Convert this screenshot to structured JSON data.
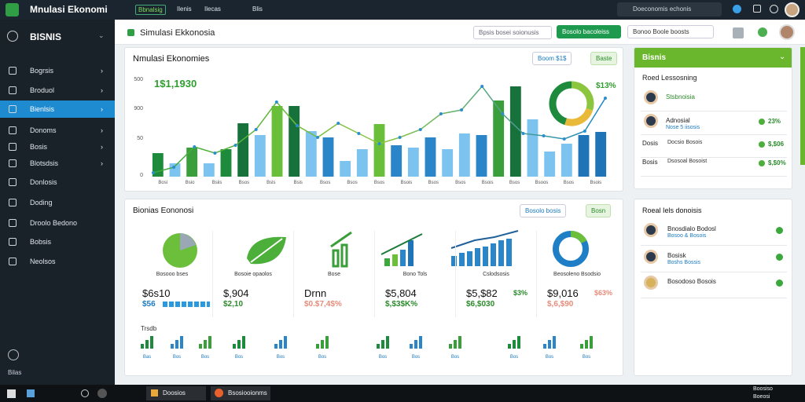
{
  "topbar": {
    "app": "Mnulasi Ekonomi",
    "menu": [
      "Bbnalsig",
      "Ilenis",
      "Ilecas",
      "Blis"
    ],
    "search": "Doeconomis echonis"
  },
  "sidebar": {
    "brand": "BISNIS",
    "items": [
      "Bogrsis",
      "Broduol",
      "Bienlsis",
      "Donoms",
      "Bosis",
      "Blotsdsis",
      "Donlosis",
      "Doding",
      "Droolo Bedono",
      "Bobsis",
      "Neolsos"
    ],
    "active": 2,
    "footer": "Bilas"
  },
  "header": {
    "title": "Simulasi Ekkonosia",
    "search": "Bpsis bosei soionusis",
    "button": "Bosolo bacoleiss",
    "filter": "Bonoo Boole boosts"
  },
  "chart_data": {
    "type": "bar",
    "title": "Nmulasi Ekonomies",
    "headline": "1$1,1930",
    "badge": "$13%",
    "buttons": [
      "Boom $1$",
      "Baste"
    ],
    "axis_labels": [
      "500",
      "900",
      "50",
      "0"
    ],
    "categories": [
      "Bosi",
      "Bsio",
      "Bsiis",
      "Bsos",
      "Bsls",
      "Bsis",
      "Bsos",
      "Bsos",
      "Bsos",
      "Bsois",
      "Bsos",
      "Bsos",
      "Bsois",
      "Bsos",
      "Bsoos",
      "Bsos",
      "Bsois"
    ],
    "ylim": [
      0,
      125
    ],
    "bars": [
      {
        "value": 30,
        "color": "#1e8a3c"
      },
      {
        "value": 17,
        "color": "#7cc4ef"
      },
      {
        "value": 37,
        "color": "#3a9e3a"
      },
      {
        "value": 17,
        "color": "#7cc4ef"
      },
      {
        "value": 35,
        "color": "#1e8a3c"
      },
      {
        "value": 68,
        "color": "#17713a"
      },
      {
        "value": 53,
        "color": "#7cc4ef"
      },
      {
        "value": 90,
        "color": "#6abf3a"
      },
      {
        "value": 90,
        "color": "#17713a"
      },
      {
        "value": 58,
        "color": "#7cc4ef"
      },
      {
        "value": 50,
        "color": "#2a86c8"
      },
      {
        "value": 20,
        "color": "#7cc4ef"
      },
      {
        "value": 35,
        "color": "#7cc4ef"
      },
      {
        "value": 67,
        "color": "#6abf3a"
      },
      {
        "value": 40,
        "color": "#2a86c8"
      },
      {
        "value": 37,
        "color": "#7cc4ef"
      },
      {
        "value": 50,
        "color": "#2a86c8"
      },
      {
        "value": 35,
        "color": "#7cc4ef"
      },
      {
        "value": 55,
        "color": "#7cc4ef"
      },
      {
        "value": 53,
        "color": "#2a86c8"
      },
      {
        "value": 97,
        "color": "#3a9e3a"
      },
      {
        "value": 115,
        "color": "#17713a"
      },
      {
        "value": 73,
        "color": "#7cc4ef"
      },
      {
        "value": 32,
        "color": "#7cc4ef"
      },
      {
        "value": 42,
        "color": "#7cc4ef"
      },
      {
        "value": 53,
        "color": "#1f74b8"
      },
      {
        "value": 57,
        "color": "#1f74b8"
      }
    ],
    "line": [
      5,
      12,
      38,
      30,
      40,
      60,
      95,
      65,
      50,
      68,
      55,
      42,
      50,
      60,
      80,
      85,
      115,
      80,
      55,
      52,
      48,
      58,
      100
    ],
    "donut": [
      {
        "value": 30,
        "color": "#8cc63f"
      },
      {
        "value": 25,
        "color": "#e9b93a"
      },
      {
        "value": 45,
        "color": "#1e8a3c"
      }
    ]
  },
  "right_top": {
    "title": "Bisnis",
    "subtitle": "Roed Lessosning",
    "rows": [
      {
        "name": "Stsbnoisia"
      },
      {
        "name": "Adnosial",
        "detail": "Nose 5 iisosis",
        "value": "23%"
      },
      {
        "name": "Dosis",
        "detail": "Docsio Bosois",
        "value": "$,$06"
      },
      {
        "name": "Bosis",
        "detail": "Dsosoal Bosoist",
        "value": "$,$0%"
      }
    ]
  },
  "bottom": {
    "title": "Bionias Eononosi",
    "buttons": [
      "Bosolo bosis",
      "Bosn"
    ],
    "section": "Trsdb",
    "cards": [
      {
        "label": "Bosooo bses",
        "value": "$6s10",
        "sub": "$56"
      },
      {
        "label": "Bosoie opaolos",
        "value": "$,904",
        "sub": "$2,10"
      },
      {
        "label": "Bose",
        "value": "Drnn",
        "sub": "$0.$7,4$%"
      },
      {
        "label": "Bono Tols",
        "value": "$5,804",
        "sub": "$,$3$K%"
      },
      {
        "label": "Cslodsosis",
        "value": "$5,$82",
        "sub": "$6,$030",
        "badge": "$3%"
      },
      {
        "label": "Beosoleno Bsodsio",
        "value": "$9,016",
        "sub": "$,6,$90",
        "badge": "$63%"
      }
    ],
    "mini_labels": [
      "Bas",
      "Bos",
      "Bos",
      "Bos",
      "Bos",
      "Bos",
      "Bos",
      "Bos",
      "Bos",
      "Bos",
      "Bos",
      "Bos"
    ]
  },
  "right_bottom": {
    "title": "Roeal Iels donoisis",
    "rows": [
      {
        "name": "Bnosdialo Bodosl",
        "detail": "Bosoo & Bosois"
      },
      {
        "name": "Bosisk",
        "detail": "Boshs Bossis"
      },
      {
        "name": "Bosodoso Bosois"
      }
    ]
  },
  "taskbar": {
    "apps": [
      "Doosios",
      "Bsosiooionms"
    ],
    "time": "Boosiso",
    "date": "Boeosi"
  }
}
